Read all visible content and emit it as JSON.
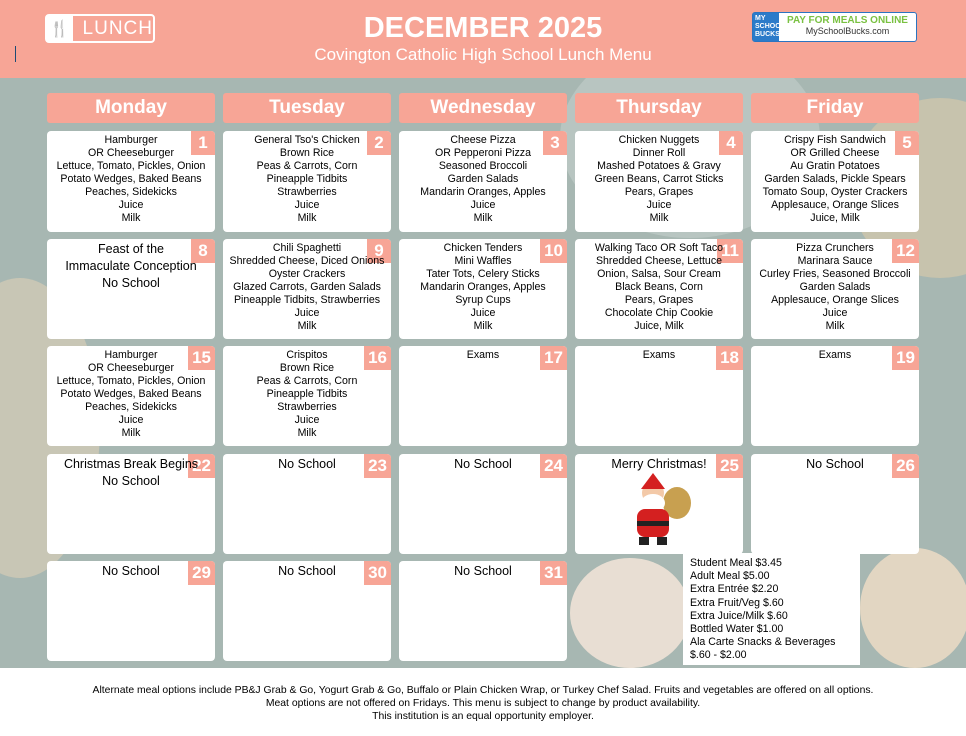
{
  "header": {
    "logo_text": "LUNCH",
    "title": "DECEMBER 2025",
    "subtitle": "Covington Catholic High School Lunch Menu",
    "badge": {
      "left": "MY SCHOOL BUCKS",
      "tagline": "PAY FOR MEALS ONLINE",
      "url": "MySchoolBucks.com"
    }
  },
  "colors": {
    "accent": "#f7a596",
    "background": "#a7b7b2",
    "badge_blue": "#2b7bc9",
    "badge_green": "#7ac142"
  },
  "days": [
    "Monday",
    "Tuesday",
    "Wednesday",
    "Thursday",
    "Friday"
  ],
  "weeks": [
    [
      {
        "n": "1",
        "items": [
          "Hamburger",
          "OR Cheeseburger",
          "Lettuce, Tomato, Pickles, Onion",
          "Potato Wedges, Baked Beans",
          "Peaches, Sidekicks",
          "Juice",
          "Milk"
        ]
      },
      {
        "n": "2",
        "items": [
          "General Tso's Chicken",
          "Brown Rice",
          "Peas & Carrots, Corn",
          "Pineapple Tidbits",
          "Strawberries",
          "Juice",
          "Milk"
        ]
      },
      {
        "n": "3",
        "items": [
          "Cheese Pizza",
          "OR Pepperoni Pizza",
          "Seasoned Broccoli",
          "Garden Salads",
          "Mandarin Oranges, Apples",
          "Juice",
          "Milk"
        ]
      },
      {
        "n": "4",
        "items": [
          "Chicken Nuggets",
          "Dinner Roll",
          "Mashed Potatoes & Gravy",
          "Green Beans, Carrot Sticks",
          "Pears, Grapes",
          "Juice",
          "Milk"
        ]
      },
      {
        "n": "5",
        "items": [
          "Crispy Fish Sandwich",
          "OR Grilled Cheese",
          "Au Gratin Potatoes",
          "Garden Salads, Pickle Spears",
          "Tomato Soup, Oyster Crackers",
          "Applesauce, Orange Slices",
          "Juice, Milk"
        ]
      }
    ],
    [
      {
        "n": "8",
        "big": true,
        "items": [
          "Feast of the",
          "Immaculate Conception",
          "No School"
        ]
      },
      {
        "n": "9",
        "items": [
          "Chili Spaghetti",
          "Shredded Cheese, Diced Onions",
          "Oyster Crackers",
          "Glazed Carrots, Garden Salads",
          "Pineapple Tidbits, Strawberries",
          "Juice",
          "Milk"
        ]
      },
      {
        "n": "10",
        "items": [
          "Chicken Tenders",
          "Mini Waffles",
          "Tater Tots, Celery Sticks",
          "Mandarin Oranges, Apples",
          "Syrup Cups",
          "Juice",
          "Milk"
        ]
      },
      {
        "n": "11",
        "items": [
          "Walking Taco OR Soft Taco",
          "Shredded Cheese, Lettuce",
          "Onion, Salsa, Sour Cream",
          "Black Beans, Corn",
          "Pears, Grapes",
          "Chocolate Chip Cookie",
          "Juice, Milk"
        ]
      },
      {
        "n": "12",
        "items": [
          "Pizza Crunchers",
          "Marinara Sauce",
          "Curley Fries, Seasoned Broccoli",
          "Garden Salads",
          "Applesauce, Orange Slices",
          "Juice",
          "Milk"
        ]
      }
    ],
    [
      {
        "n": "15",
        "items": [
          "Hamburger",
          "OR Cheeseburger",
          "Lettuce, Tomato, Pickles, Onion",
          "Potato Wedges, Baked Beans",
          "Peaches, Sidekicks",
          "Juice",
          "Milk"
        ]
      },
      {
        "n": "16",
        "items": [
          "Crispitos",
          "Brown Rice",
          "Peas & Carrots, Corn",
          "Pineapple Tidbits",
          "Strawberries",
          "Juice",
          "Milk"
        ]
      },
      {
        "n": "17",
        "items": [
          "Exams"
        ]
      },
      {
        "n": "18",
        "items": [
          "Exams"
        ]
      },
      {
        "n": "19",
        "items": [
          "Exams"
        ]
      }
    ],
    [
      {
        "n": "22",
        "big": true,
        "items": [
          "Christmas Break Begins",
          "No School"
        ]
      },
      {
        "n": "23",
        "big": true,
        "items": [
          "No School"
        ]
      },
      {
        "n": "24",
        "big": true,
        "items": [
          "No School"
        ]
      },
      {
        "n": "25",
        "big": true,
        "santa": true,
        "items": [
          "Merry Christmas!"
        ]
      },
      {
        "n": "26",
        "big": true,
        "items": [
          "No School"
        ]
      }
    ],
    [
      {
        "n": "29",
        "big": true,
        "items": [
          "No School"
        ]
      },
      {
        "n": "30",
        "big": true,
        "items": [
          "No School"
        ]
      },
      {
        "n": "31",
        "big": true,
        "items": [
          "No School"
        ]
      }
    ]
  ],
  "prices": [
    "Student Meal $3.45",
    "Adult Meal $5.00",
    "Extra Entrée $2.20",
    "Extra Fruit/Veg $.60",
    "Extra Juice/Milk $.60",
    "Bottled Water $1.00",
    "Ala Carte Snacks & Beverages",
    "$.60 - $2.00"
  ],
  "footer": [
    "Alternate meal options include PB&J Grab & Go, Yogurt Grab & Go, Buffalo or Plain Chicken Wrap, or Turkey Chef Salad. Fruits and vegetables are offered on all options.",
    "Meat options are not offered on Fridays. This menu is subject to change by product availability.",
    "This institution is an equal opportunity employer."
  ]
}
